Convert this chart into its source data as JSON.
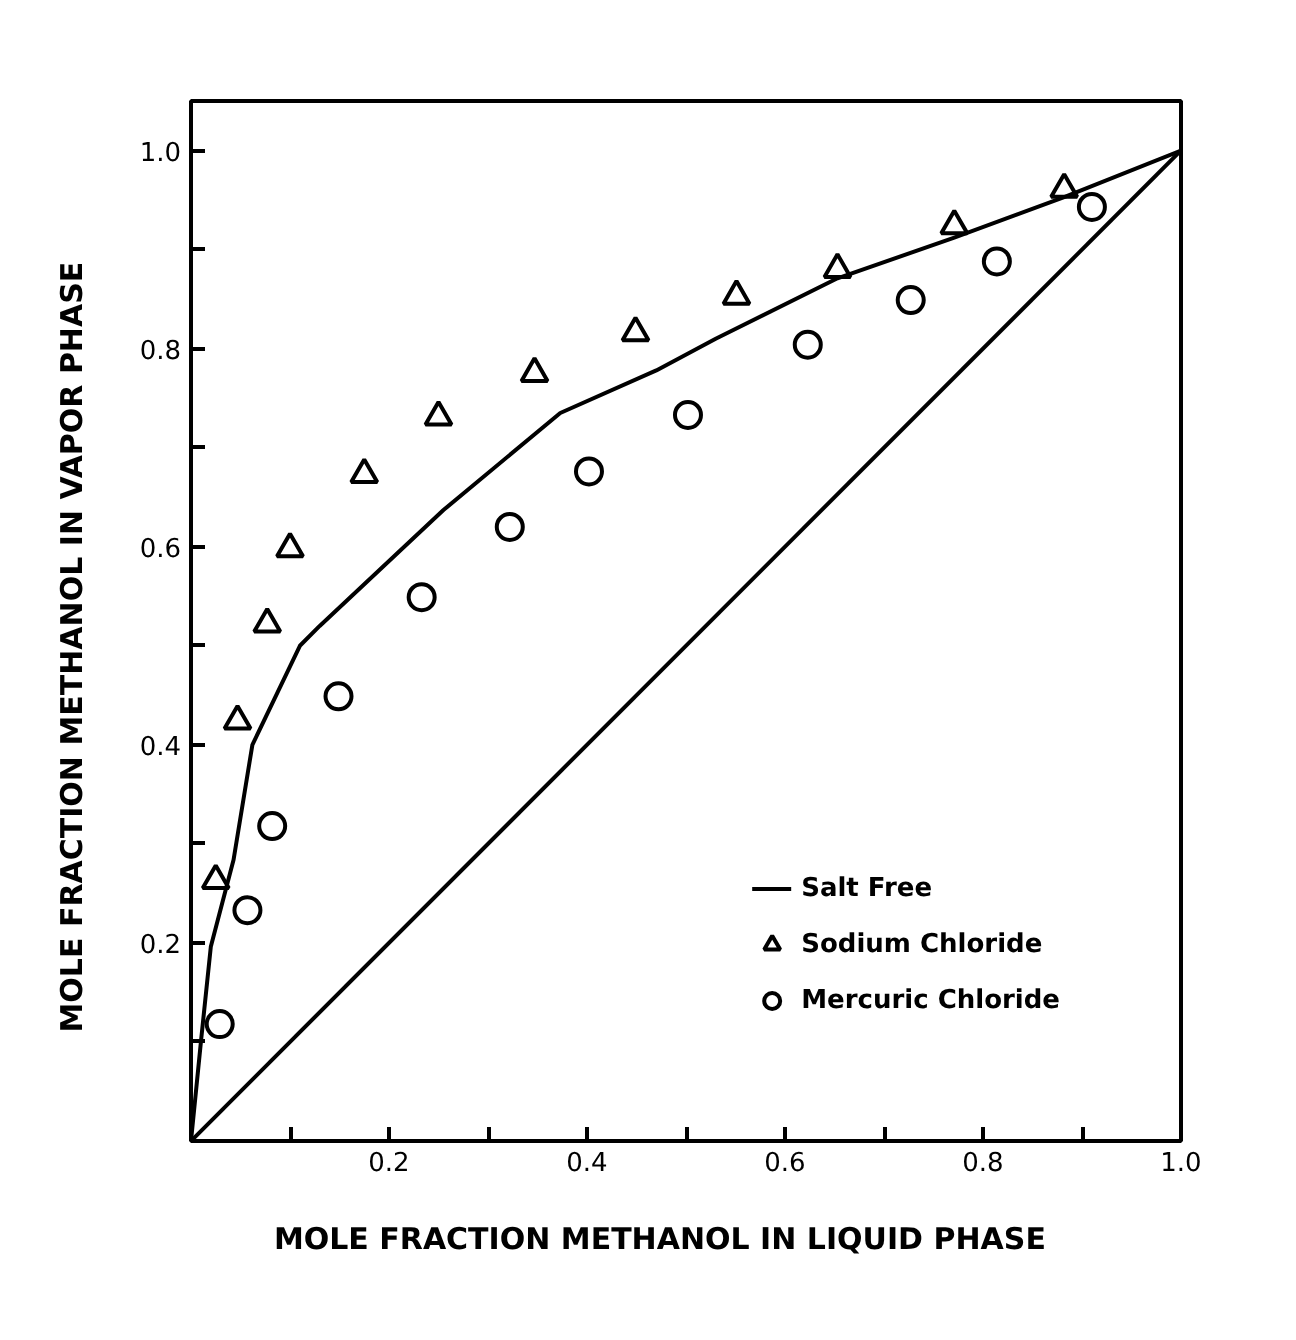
{
  "chart_data": {
    "type": "scatter",
    "xlabel": "MOLE  FRACTION  METHANOL  IN  LIQUID  PHASE",
    "ylabel": "MOLE  FRACTION  METHANOL  IN  VAPOR  PHASE",
    "xlim": [
      0,
      1.0
    ],
    "ylim": [
      0,
      1.05
    ],
    "xticks": [
      {
        "value": 0.1,
        "label": null
      },
      0.2,
      {
        "value": 0.3,
        "label": null
      },
      0.4,
      {
        "value": 0.5,
        "label": null
      },
      0.6,
      {
        "value": 0.7,
        "label": null
      },
      0.8,
      {
        "value": 0.9,
        "label": null
      },
      {
        "value": 1.0,
        "label": "1.0"
      }
    ],
    "yticks": [
      {
        "value": 0.1,
        "label": null
      },
      0.2,
      {
        "value": 0.3,
        "label": null
      },
      0.4,
      {
        "value": 0.5,
        "label": null
      },
      0.6,
      {
        "value": 0.7,
        "label": null
      },
      0.8,
      {
        "value": 0.9,
        "label": null
      },
      {
        "value": 1.0,
        "label": "1.0"
      }
    ],
    "grid": false,
    "legend": "bottom right",
    "series": [
      {
        "name": "Salt Free",
        "type": "line",
        "color": "#000000",
        "x": [
          0,
          0.01,
          0.02,
          0.043,
          0.062,
          0.11,
          0.13,
          0.255,
          0.373,
          0.47,
          0.53,
          0.653,
          0.771,
          0.882,
          1.0
        ],
        "values": [
          0,
          0.1,
          0.196,
          0.284,
          0.4,
          0.5,
          0.52,
          0.637,
          0.735,
          0.778,
          0.81,
          0.871,
          0.912,
          0.953,
          1.0
        ]
      },
      {
        "name": "Sodium Chloride",
        "marker": "triangle",
        "color": "#000000",
        "x": [
          0.025,
          0.047,
          0.077,
          0.1,
          0.175,
          0.25,
          0.347,
          0.449,
          0.551,
          0.653,
          0.771,
          0.882
        ],
        "values": [
          0.263,
          0.424,
          0.522,
          0.598,
          0.673,
          0.731,
          0.775,
          0.816,
          0.853,
          0.88,
          0.924,
          0.961
        ]
      },
      {
        "name": "Mercuric Chloride",
        "marker": "circle",
        "color": "#000000",
        "x": [
          0.029,
          0.057,
          0.082,
          0.149,
          0.233,
          0.322,
          0.402,
          0.502,
          0.623,
          0.727,
          0.814,
          0.91
        ],
        "values": [
          0.118,
          0.233,
          0.318,
          0.449,
          0.549,
          0.62,
          0.676,
          0.733,
          0.804,
          0.849,
          0.888,
          0.943
        ]
      },
      {
        "type": "line",
        "color": "#000000",
        "x": [
          0,
          1.0
        ],
        "values": [
          0,
          1.0
        ]
      }
    ]
  }
}
